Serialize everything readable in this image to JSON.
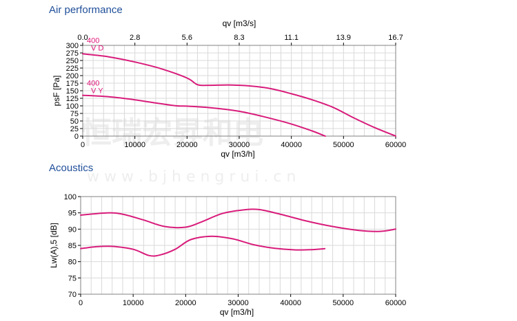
{
  "sections": {
    "air_title": "Air performance",
    "acoustic_title": "Acoustics"
  },
  "watermark": {
    "cn": "恒瑞宏昇和电",
    "url": "w w w . b j h e n g r u i . c n"
  },
  "colors": {
    "curve": "#d81b7a",
    "grid": "#d9d9d9",
    "axis": "#808080",
    "title": "#1f4e99"
  },
  "chart_data": [
    {
      "type": "line",
      "title": "Air performance",
      "xlabel": "qv [m3/h]",
      "ylabel": "psF [Pa]",
      "x2label": "qv [m3/s]",
      "xlim": [
        0,
        60000
      ],
      "ylim": [
        0,
        300
      ],
      "xticks": [
        "0",
        "10000",
        "20000",
        "30000",
        "40000",
        "50000",
        "60000"
      ],
      "yticks": [
        "0",
        "25",
        "50",
        "75",
        "100",
        "125",
        "150",
        "175",
        "200",
        "225",
        "250",
        "275",
        "300"
      ],
      "x2ticks": [
        "0.0",
        "2.8",
        "5.6",
        "8.3",
        "11.1",
        "13.9",
        "16.7"
      ],
      "grid": true,
      "series": [
        {
          "label_lines": [
            "400",
            "V D"
          ],
          "x": [
            0,
            5000,
            10000,
            15000,
            20000,
            22000,
            24000,
            28000,
            32000,
            36000,
            40000,
            44000,
            48000,
            52000,
            56000,
            60000
          ],
          "y": [
            272,
            262,
            245,
            223,
            192,
            170,
            168,
            169,
            166,
            157,
            140,
            120,
            95,
            60,
            28,
            0
          ]
        },
        {
          "label_lines": [
            "400",
            "V Y"
          ],
          "x": [
            0,
            5000,
            10000,
            15000,
            18000,
            20000,
            25000,
            30000,
            35000,
            40000,
            44000,
            46500
          ],
          "y": [
            135,
            130,
            120,
            107,
            100,
            99,
            93,
            82,
            63,
            40,
            17,
            0
          ]
        }
      ]
    },
    {
      "type": "line",
      "title": "Acoustics",
      "xlabel": "qv [m3/h]",
      "ylabel": "Lw(A),5 [dB]",
      "xlim": [
        0,
        60000
      ],
      "ylim": [
        70,
        100
      ],
      "xticks": [
        "0",
        "10000",
        "20000",
        "30000",
        "40000",
        "50000",
        "60000"
      ],
      "yticks": [
        "70",
        "75",
        "80",
        "85",
        "90",
        "95",
        "100"
      ],
      "grid": true,
      "series": [
        {
          "x": [
            0,
            5000,
            8000,
            12000,
            16000,
            20000,
            23000,
            27000,
            31000,
            34000,
            38000,
            43000,
            48000,
            53000,
            57000,
            60000
          ],
          "y": [
            94.3,
            95.0,
            94.6,
            92.8,
            90.8,
            90.6,
            92.2,
            94.8,
            95.9,
            96.0,
            94.6,
            92.5,
            90.8,
            89.6,
            89.3,
            90.0
          ]
        },
        {
          "x": [
            0,
            3000,
            6000,
            10000,
            13000,
            15000,
            18000,
            21000,
            25000,
            29000,
            33000,
            37000,
            41000,
            44000,
            46500
          ],
          "y": [
            84.0,
            84.6,
            84.7,
            83.8,
            81.9,
            82.0,
            83.8,
            86.8,
            87.8,
            87.0,
            85.2,
            84.1,
            83.6,
            83.7,
            84.0
          ]
        }
      ]
    }
  ]
}
